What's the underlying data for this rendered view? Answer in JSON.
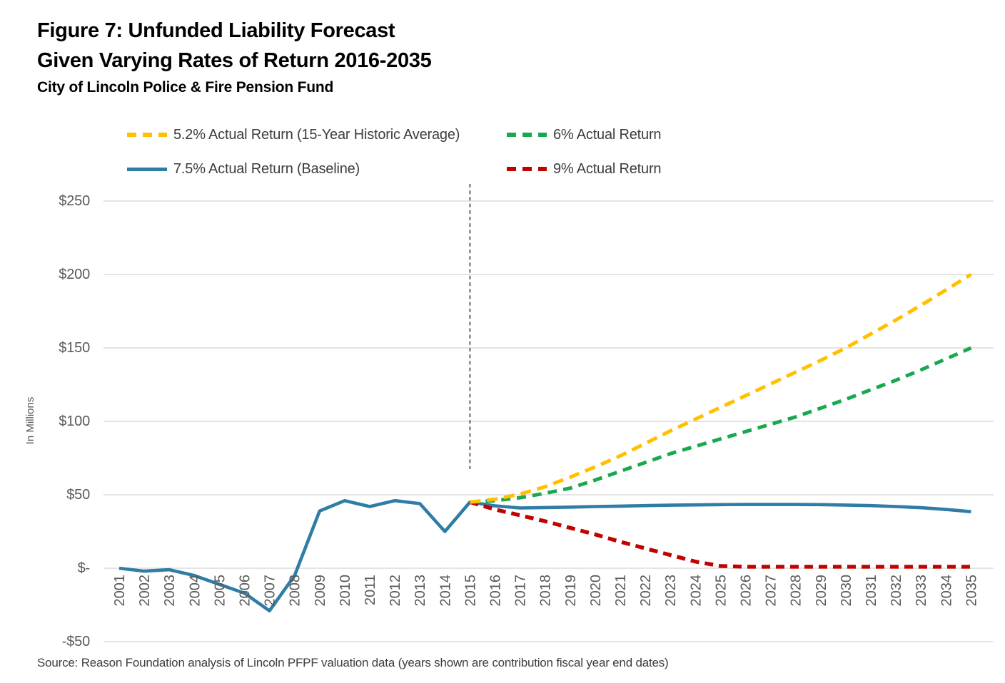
{
  "header": {
    "title_line1": "Figure 7: Unfunded Liability Forecast",
    "title_line2": "Given Varying Rates of Return 2016-2035",
    "subtitle": "City of Lincoln Police & Fire Pension Fund"
  },
  "legend": {
    "items": [
      {
        "label": "5.2% Actual Return (15-Year Historic Average)",
        "color": "#FFC000",
        "style": "dashed"
      },
      {
        "label": "6% Actual Return",
        "color": "#18A94F",
        "style": "dashed"
      },
      {
        "label": "7.5% Actual Return (Baseline)",
        "color": "#2F7DA5",
        "style": "solid"
      },
      {
        "label": "9% Actual Return",
        "color": "#C20000",
        "style": "dashed"
      }
    ]
  },
  "chart_data": {
    "type": "line",
    "title": "Figure 7: Unfunded Liability Forecast Given Varying Rates of Return 2016-2035",
    "subtitle": "City of Lincoln Police & Fire Pension Fund",
    "ylabel": "In Millions",
    "units": "millions of dollars",
    "ylim": [
      -50,
      250
    ],
    "grid": true,
    "legend_position": "top",
    "forecast_divider_x": 2015,
    "x": [
      2001,
      2002,
      2003,
      2004,
      2005,
      2006,
      2007,
      2008,
      2009,
      2010,
      2011,
      2012,
      2013,
      2014,
      2015,
      2016,
      2017,
      2018,
      2019,
      2020,
      2021,
      2022,
      2023,
      2024,
      2025,
      2026,
      2027,
      2028,
      2029,
      2030,
      2031,
      2032,
      2033,
      2034,
      2035
    ],
    "y_ticks": [
      {
        "label": "$250",
        "value": 250
      },
      {
        "label": "$200",
        "value": 200
      },
      {
        "label": "$150",
        "value": 150
      },
      {
        "label": "$100",
        "value": 100
      },
      {
        "label": "$50",
        "value": 50
      },
      {
        "label": "$-",
        "value": 0
      },
      {
        "label": "-$50",
        "value": -50
      }
    ],
    "series": [
      {
        "name": "7.5% Actual Return (Baseline)",
        "color": "#2F7DA5",
        "style": "solid",
        "start_year": 2001,
        "values": [
          0,
          -2,
          -1,
          -5,
          -11,
          -17,
          -29,
          -5,
          39,
          46,
          42,
          46,
          44,
          25,
          45,
          42.5,
          41,
          41.3,
          41.6,
          42,
          42.3,
          42.6,
          42.9,
          43.1,
          43.3,
          43.4,
          43.4,
          43.4,
          43.3,
          43,
          42.6,
          42,
          41.2,
          40,
          38.5
        ]
      },
      {
        "name": "9% Actual Return",
        "color": "#C20000",
        "style": "dashed",
        "start_year": 2015,
        "values": [
          45,
          40,
          36,
          32,
          27.5,
          23,
          18,
          13.5,
          9,
          4.5,
          1.5,
          1,
          1,
          1,
          1,
          1,
          1,
          1,
          1,
          1,
          1
        ]
      },
      {
        "name": "6% Actual Return",
        "color": "#18A94F",
        "style": "dashed",
        "start_year": 2015,
        "values": [
          45,
          46,
          48,
          51,
          54.5,
          60,
          66,
          72,
          78,
          83,
          88,
          93,
          98,
          103,
          109,
          115,
          121.5,
          128,
          135,
          142.5,
          150
        ]
      },
      {
        "name": "5.2% Actual Return (15-Year Historic Average)",
        "color": "#FFC000",
        "style": "dashed",
        "start_year": 2015,
        "values": [
          45,
          47,
          50.5,
          55.5,
          62,
          69,
          76.5,
          85,
          93.5,
          101.5,
          109.5,
          117.5,
          125.5,
          133.5,
          141.5,
          150,
          159.5,
          169,
          179,
          189.5,
          200
        ]
      }
    ]
  },
  "footer": {
    "source": "Source: Reason Foundation analysis of Lincoln PFPF valuation data (years shown are contribution fiscal year end dates)"
  }
}
